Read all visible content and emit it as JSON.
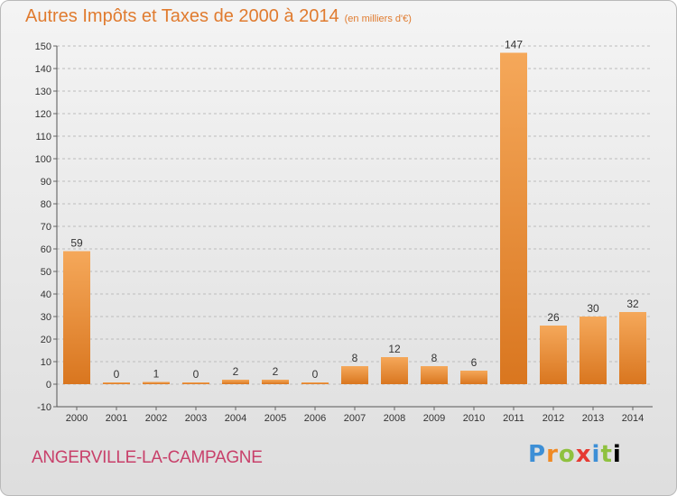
{
  "header": {
    "title": "Autres Impôts et Taxes de 2000 à 2014",
    "subtitle": "(en milliers d'€)"
  },
  "footer": {
    "commune": "ANGERVILLE-LA-CAMPAGNE",
    "logo_text": "Proxiti"
  },
  "colors": {
    "title": "#e07b2f",
    "commune": "#c8406a",
    "bar_light": "#f5a85a",
    "bar_dark": "#d9761f",
    "grid": "#bcbcbc"
  },
  "chart_data": {
    "type": "bar",
    "title": "Autres Impôts et Taxes de 2000 à 2014",
    "subtitle": "(en milliers d'€)",
    "xlabel": "",
    "ylabel": "",
    "categories": [
      "2000",
      "2001",
      "2002",
      "2003",
      "2004",
      "2005",
      "2006",
      "2007",
      "2008",
      "2009",
      "2010",
      "2011",
      "2012",
      "2013",
      "2014"
    ],
    "values": [
      59,
      0,
      1,
      0,
      2,
      2,
      0,
      8,
      12,
      8,
      6,
      147,
      26,
      30,
      32
    ],
    "data_labels": [
      "59",
      "0",
      "1",
      "0",
      "2",
      "2",
      "0",
      "8",
      "12",
      "8",
      "6",
      "147",
      "26",
      "30",
      "32"
    ],
    "ylim": [
      -10,
      150
    ],
    "yticks": [
      -10,
      0,
      10,
      20,
      30,
      40,
      50,
      60,
      70,
      80,
      90,
      100,
      110,
      120,
      130,
      140,
      150
    ],
    "grid": "horizontal dashed",
    "legend": "none"
  }
}
